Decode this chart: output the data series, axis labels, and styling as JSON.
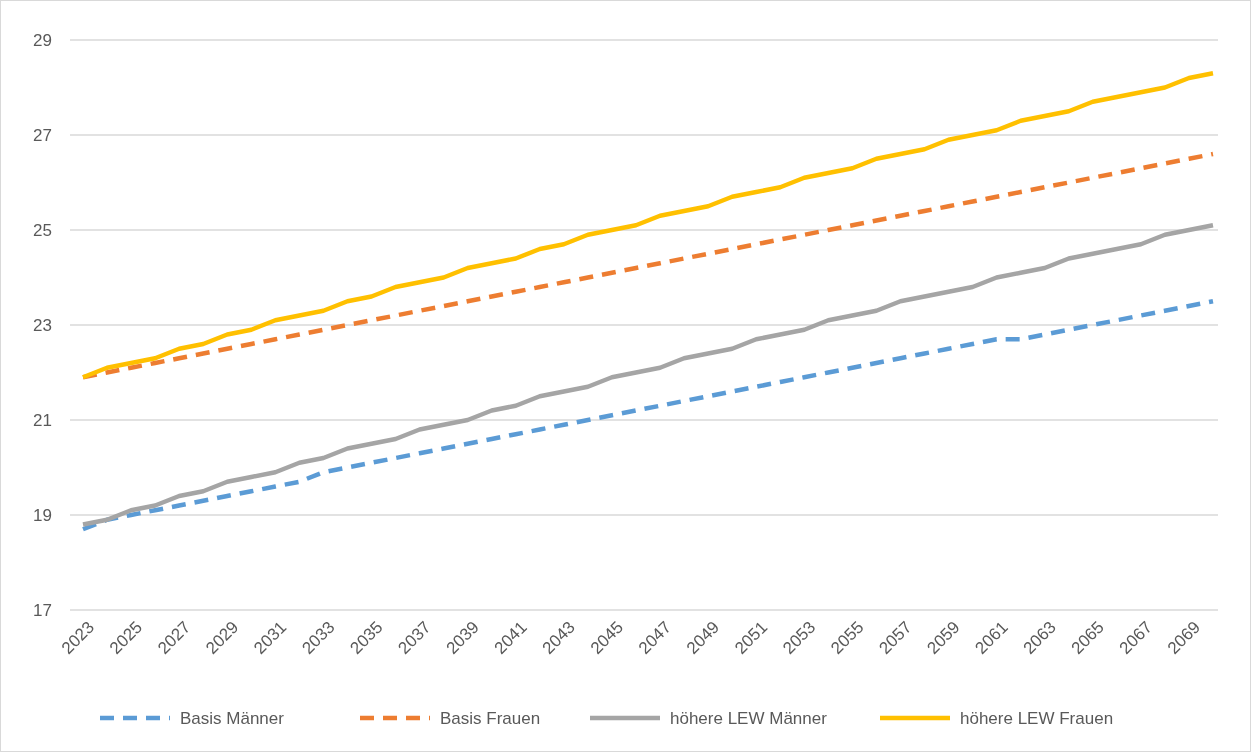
{
  "chart_data": {
    "type": "line",
    "categories": [
      "2023",
      null,
      "2025",
      null,
      "2027",
      null,
      "2029",
      null,
      "2031",
      null,
      "2033",
      null,
      "2035",
      null,
      "2037",
      null,
      "2039",
      null,
      "2041",
      null,
      "2043",
      null,
      "2045",
      null,
      "2047",
      null,
      "2049",
      null,
      "2051",
      null,
      "2053",
      null,
      "2055",
      null,
      "2057",
      null,
      "2059",
      null,
      "2061",
      null,
      "2063",
      null,
      "2065",
      null,
      "2067",
      null,
      "2069",
      null
    ],
    "series": [
      {
        "name": "Basis Männer",
        "color": "#5b9bd5",
        "line_style": "dashed",
        "values": [
          18.7,
          18.9,
          19.0,
          19.1,
          19.2,
          19.3,
          19.4,
          19.5,
          19.6,
          19.7,
          19.9,
          20.0,
          20.1,
          20.2,
          20.3,
          20.4,
          20.5,
          20.6,
          20.7,
          20.8,
          20.9,
          21.0,
          21.1,
          21.2,
          21.3,
          21.4,
          21.5,
          21.6,
          21.7,
          21.8,
          21.9,
          22.0,
          22.1,
          22.2,
          22.3,
          22.4,
          22.5,
          22.6,
          22.7,
          22.7,
          22.8,
          22.9,
          23.0,
          23.1,
          23.2,
          23.3,
          23.4,
          23.5
        ]
      },
      {
        "name": "Basis Frauen",
        "color": "#ed7d31",
        "line_style": "dashed",
        "values": [
          21.9,
          22.0,
          22.1,
          22.2,
          22.3,
          22.4,
          22.5,
          22.6,
          22.7,
          22.8,
          22.9,
          23.0,
          23.1,
          23.2,
          23.3,
          23.4,
          23.5,
          23.6,
          23.7,
          23.8,
          23.9,
          24.0,
          24.1,
          24.2,
          24.3,
          24.4,
          24.5,
          24.6,
          24.7,
          24.8,
          24.9,
          25.0,
          25.1,
          25.2,
          25.3,
          25.4,
          25.5,
          25.6,
          25.7,
          25.8,
          25.9,
          26.0,
          26.1,
          26.2,
          26.3,
          26.4,
          26.5,
          26.6
        ]
      },
      {
        "name": "höhere LEW Männer",
        "color": "#a5a5a5",
        "line_style": "solid",
        "values": [
          18.8,
          18.9,
          19.1,
          19.2,
          19.4,
          19.5,
          19.7,
          19.8,
          19.9,
          20.1,
          20.2,
          20.4,
          20.5,
          20.6,
          20.8,
          20.9,
          21.0,
          21.2,
          21.3,
          21.5,
          21.6,
          21.7,
          21.9,
          22.0,
          22.1,
          22.3,
          22.4,
          22.5,
          22.7,
          22.8,
          22.9,
          23.1,
          23.2,
          23.3,
          23.5,
          23.6,
          23.7,
          23.8,
          24.0,
          24.1,
          24.2,
          24.4,
          24.5,
          24.6,
          24.7,
          24.9,
          25.0,
          25.1
        ]
      },
      {
        "name": "höhere LEW Frauen",
        "color": "#ffc000",
        "line_style": "solid",
        "values": [
          21.9,
          22.1,
          22.2,
          22.3,
          22.5,
          22.6,
          22.8,
          22.9,
          23.1,
          23.2,
          23.3,
          23.5,
          23.6,
          23.8,
          23.9,
          24.0,
          24.2,
          24.3,
          24.4,
          24.6,
          24.7,
          24.9,
          25.0,
          25.1,
          25.3,
          25.4,
          25.5,
          25.7,
          25.8,
          25.9,
          26.1,
          26.2,
          26.3,
          26.5,
          26.6,
          26.7,
          26.9,
          27.0,
          27.1,
          27.3,
          27.4,
          27.5,
          27.7,
          27.8,
          27.9,
          28.0,
          28.2,
          28.3
        ]
      }
    ],
    "ylim": [
      17,
      29
    ],
    "yticks": [
      17,
      19,
      21,
      23,
      25,
      27,
      29
    ],
    "grid": "y",
    "legend": "bottom"
  }
}
